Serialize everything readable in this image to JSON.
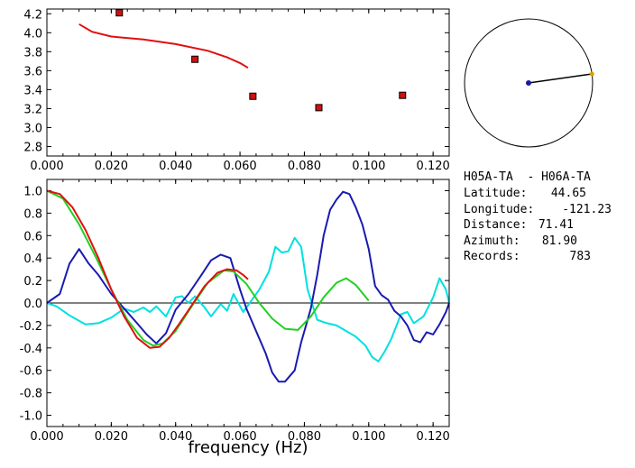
{
  "info": {
    "station_pair": "H05A-TA  - H06A-TA",
    "latitude_label": "Latitude:",
    "latitude_value": "44.65",
    "longitude_label": "Longitude:",
    "longitude_value": "-121.23",
    "distance_label": "Distance:",
    "distance_value": "71.41",
    "azimuth_label": "Azimuth:",
    "azimuth_value": "81.90",
    "records_label": "Records:",
    "records_value": "783"
  },
  "compass": {
    "azimuth_deg": 81.9,
    "colors": {
      "circle": "#000000",
      "center_dot": "#1a1aa0",
      "tip_dot": "#d8a000",
      "needle": "#000000"
    }
  },
  "chart_data": [
    {
      "id": "dispersion",
      "type": "scatter",
      "xlim": [
        0,
        0.125
      ],
      "ylim": [
        2.7,
        4.25
      ],
      "xticks": [
        "0.000",
        "0.020",
        "0.040",
        "0.060",
        "0.080",
        "0.100",
        "0.120"
      ],
      "yticks": [
        "2.8",
        "3.0",
        "3.2",
        "3.4",
        "3.6",
        "3.8",
        "4.0",
        "4.2"
      ],
      "points": {
        "color": "#d01010",
        "x": [
          0.0225,
          0.046,
          0.064,
          0.0845,
          0.1105
        ],
        "y": [
          4.21,
          3.72,
          3.33,
          3.21,
          3.34
        ]
      },
      "curve": {
        "color": "#e01010",
        "x": [
          0.01,
          0.014,
          0.02,
          0.03,
          0.04,
          0.05,
          0.056,
          0.06,
          0.0625
        ],
        "y": [
          4.09,
          4.01,
          3.96,
          3.93,
          3.88,
          3.81,
          3.74,
          3.68,
          3.63
        ]
      }
    },
    {
      "id": "correlation",
      "type": "line",
      "xlim": [
        0,
        0.125
      ],
      "ylim": [
        -1.1,
        1.1
      ],
      "xticks": [
        "0.000",
        "0.020",
        "0.040",
        "0.060",
        "0.080",
        "0.100",
        "0.120"
      ],
      "yticks": [
        "-1.0",
        "-0.8",
        "-0.6",
        "-0.4",
        "-0.2",
        "0.0",
        "0.2",
        "0.4",
        "0.6",
        "0.8",
        "1.0"
      ],
      "xlabel": "frequency (Hz)",
      "zero_line": true,
      "series": [
        {
          "color": "#00e0e0",
          "x": [
            0,
            0.003,
            0.007,
            0.012,
            0.016,
            0.02,
            0.024,
            0.027,
            0.03,
            0.032,
            0.034,
            0.037,
            0.04,
            0.042,
            0.044,
            0.046,
            0.049,
            0.051,
            0.054,
            0.056,
            0.058,
            0.061,
            0.063,
            0.066,
            0.069,
            0.071,
            0.073,
            0.075,
            0.077,
            0.079,
            0.081,
            0.084,
            0.087,
            0.09,
            0.093,
            0.096,
            0.099,
            0.101,
            0.103,
            0.105,
            0.107,
            0.11,
            0.112,
            0.114,
            0.117,
            0.12,
            0.122,
            0.124,
            0.125
          ],
          "y": [
            0.0,
            -0.03,
            -0.11,
            -0.19,
            -0.18,
            -0.13,
            -0.05,
            -0.08,
            -0.04,
            -0.08,
            -0.03,
            -0.12,
            0.05,
            0.06,
            0.0,
            0.06,
            -0.04,
            -0.12,
            -0.01,
            -0.07,
            0.08,
            -0.08,
            0.0,
            0.12,
            0.28,
            0.5,
            0.45,
            0.46,
            0.58,
            0.5,
            0.12,
            -0.15,
            -0.18,
            -0.2,
            -0.25,
            -0.3,
            -0.38,
            -0.48,
            -0.52,
            -0.43,
            -0.32,
            -0.1,
            -0.08,
            -0.18,
            -0.12,
            0.05,
            0.22,
            0.12,
            0.0
          ]
        },
        {
          "color": "#1a1ab0",
          "x": [
            0,
            0.004,
            0.007,
            0.01,
            0.013,
            0.016,
            0.02,
            0.024,
            0.028,
            0.031,
            0.034,
            0.037,
            0.04,
            0.044,
            0.048,
            0.051,
            0.054,
            0.057,
            0.06,
            0.062,
            0.065,
            0.068,
            0.07,
            0.072,
            0.074,
            0.077,
            0.079,
            0.082,
            0.084,
            0.086,
            0.088,
            0.09,
            0.092,
            0.094,
            0.096,
            0.098,
            0.1,
            0.102,
            0.104,
            0.106,
            0.108,
            0.11,
            0.112,
            0.114,
            0.116,
            0.118,
            0.12,
            0.122,
            0.124,
            0.125
          ],
          "y": [
            0.0,
            0.08,
            0.35,
            0.48,
            0.35,
            0.25,
            0.08,
            -0.05,
            -0.18,
            -0.28,
            -0.36,
            -0.27,
            -0.06,
            0.08,
            0.25,
            0.38,
            0.43,
            0.4,
            0.12,
            -0.05,
            -0.25,
            -0.45,
            -0.62,
            -0.7,
            -0.7,
            -0.6,
            -0.35,
            -0.05,
            0.25,
            0.6,
            0.83,
            0.92,
            0.99,
            0.97,
            0.85,
            0.7,
            0.48,
            0.15,
            0.07,
            0.03,
            -0.07,
            -0.12,
            -0.2,
            -0.33,
            -0.35,
            -0.26,
            -0.28,
            -0.19,
            -0.08,
            0.0
          ]
        },
        {
          "color": "#20d020",
          "x": [
            0,
            0.005,
            0.01,
            0.015,
            0.02,
            0.025,
            0.03,
            0.033,
            0.036,
            0.04,
            0.045,
            0.05,
            0.055,
            0.058,
            0.062,
            0.066,
            0.07,
            0.074,
            0.078,
            0.082,
            0.086,
            0.09,
            0.093,
            0.096,
            0.1
          ],
          "y": [
            1.0,
            0.93,
            0.7,
            0.42,
            0.12,
            -0.15,
            -0.33,
            -0.38,
            -0.36,
            -0.25,
            -0.03,
            0.18,
            0.29,
            0.28,
            0.17,
            0.0,
            -0.14,
            -0.23,
            -0.24,
            -0.12,
            0.05,
            0.18,
            0.22,
            0.16,
            0.02
          ]
        },
        {
          "color": "#e01010",
          "x": [
            0,
            0.004,
            0.008,
            0.012,
            0.016,
            0.02,
            0.024,
            0.028,
            0.032,
            0.035,
            0.038,
            0.041,
            0.045,
            0.049,
            0.053,
            0.056,
            0.059,
            0.061,
            0.0625
          ],
          "y": [
            1.0,
            0.97,
            0.85,
            0.65,
            0.4,
            0.12,
            -0.12,
            -0.31,
            -0.4,
            -0.39,
            -0.31,
            -0.19,
            -0.02,
            0.15,
            0.27,
            0.3,
            0.29,
            0.25,
            0.21
          ]
        }
      ]
    }
  ]
}
